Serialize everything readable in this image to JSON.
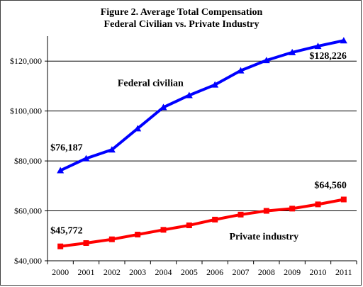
{
  "chart_data": {
    "type": "line",
    "title_line1": "Figure 2. Average Total Compensation",
    "title_line2": "Federal Civilian vs. Private Industry",
    "xlabel": "",
    "ylabel": "",
    "x": [
      "2000",
      "2001",
      "2002",
      "2003",
      "2004",
      "2005",
      "2006",
      "2007",
      "2008",
      "2009",
      "2010",
      "2011"
    ],
    "ylim": [
      40000,
      130000
    ],
    "yticks": [
      40000,
      60000,
      80000,
      100000,
      120000
    ],
    "ytick_labels": [
      "$40,000",
      "$60,000",
      "$80,000",
      "$100,000",
      "$120,000"
    ],
    "grid": true,
    "series": [
      {
        "name": "Federal civilian",
        "color": "#0000ff",
        "marker": "triangle",
        "values": [
          76187,
          81000,
          84500,
          93000,
          101500,
          106300,
          110500,
          116200,
          120300,
          123500,
          126000,
          128226
        ]
      },
      {
        "name": "Private industry",
        "color": "#ff0000",
        "marker": "square",
        "values": [
          45772,
          47100,
          48600,
          50500,
          52400,
          54200,
          56500,
          58500,
          60000,
          60900,
          62600,
          64560
        ]
      }
    ],
    "annotations": {
      "fed_start": "$76,187",
      "fed_end": "$128,226",
      "priv_start": "$45,772",
      "priv_end": "$64,560"
    }
  }
}
